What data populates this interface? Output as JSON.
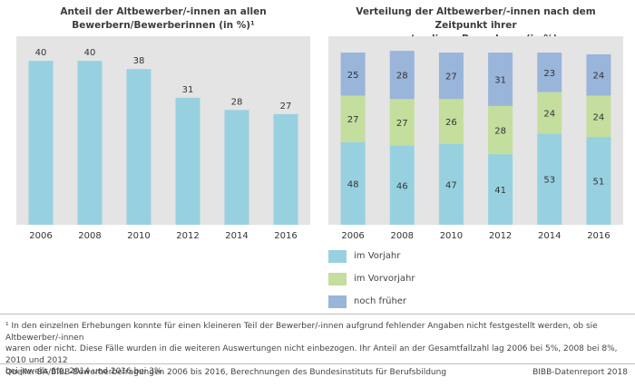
{
  "colors": {
    "panel_bg": "#e4e4e4",
    "bar_vorjahr": "#97d1e0",
    "bar_vorvorjahr": "#c4de9d",
    "bar_frueher": "#9ab5da",
    "text": "#333333"
  },
  "chart_data": [
    {
      "type": "bar",
      "title": "Anteil der Altbewerber/-innen an allen Bewerbern/Bewerberinnen (in %)¹",
      "title_line1": "Anteil der Altbewerber/-innen an allen",
      "title_line2": "Bewerbern/Bewerberinnen (in %)¹",
      "categories": [
        "2006",
        "2008",
        "2010",
        "2012",
        "2014",
        "2016"
      ],
      "values": [
        40,
        40,
        38,
        31,
        28,
        27
      ],
      "ylim": [
        0,
        46
      ],
      "grid": false
    },
    {
      "type": "bar",
      "stacked": true,
      "title": "Verteilung der Altbewerber/-innen nach dem Zeitpunkt ihrer erstmaligen Bewerbung (in %)",
      "title_line1": "Verteilung der Altbewerber/-innen nach dem Zeitpunkt ihrer",
      "title_line2": "erstmaligen Bewerbung (in %)",
      "categories": [
        "2006",
        "2008",
        "2010",
        "2012",
        "2014",
        "2016"
      ],
      "series": [
        {
          "name": "im Vorjahr",
          "color": "#97d1e0",
          "values": [
            48,
            46,
            47,
            41,
            53,
            51
          ]
        },
        {
          "name": "im Vorvorjahr",
          "color": "#c4de9d",
          "values": [
            27,
            27,
            26,
            28,
            24,
            24
          ]
        },
        {
          "name": "noch früher",
          "color": "#9ab5da",
          "values": [
            25,
            28,
            27,
            31,
            23,
            24
          ]
        }
      ],
      "ylim": [
        0,
        100
      ],
      "legend": "bottom",
      "grid": false
    }
  ],
  "footnote": {
    "line1": "¹ In den einzelnen Erhebungen konnte für einen kleineren Teil der Bewerber/-innen aufgrund fehlender Angaben nicht festgestellt werden, ob sie Altbewerber/-innen",
    "line2": "waren oder nicht. Diese Fälle wurden in die weiteren Auswertungen nicht einbezogen. Ihr Anteil an der Gesamtfallzahl lag 2006 bei 5%, 2008 bei 8%, 2010 und 2012",
    "line3": "bei jeweils 6%, 2014 und 2016 bei 3%."
  },
  "source": "Quelle: BA/BIBB-Bewerberbefragungen 2006 bis 2016, Berechnungen des Bundesinstituts für Berufsbildung",
  "brand": "BIBB-Datenreport 2018"
}
